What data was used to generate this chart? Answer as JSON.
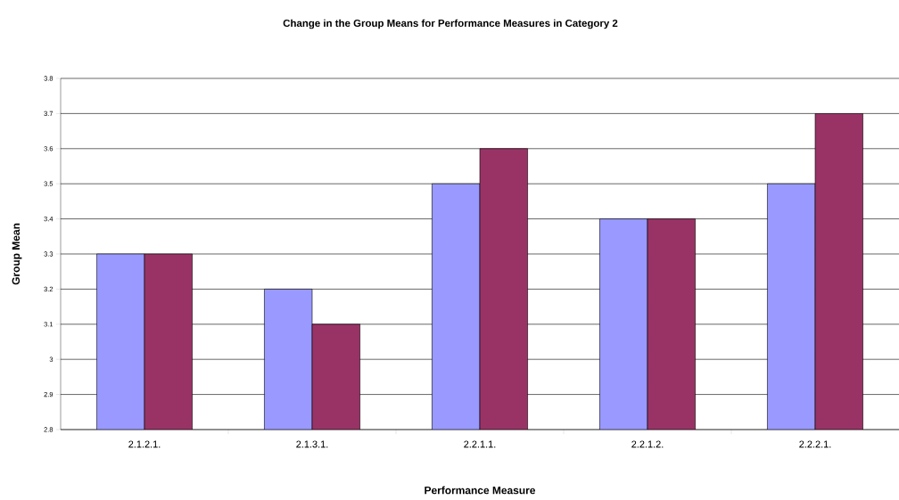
{
  "chart_data": {
    "type": "bar",
    "title": "Change in the Group Means for Performance Measures in Category 2",
    "xlabel": "Performance Measure",
    "ylabel": "Group Mean",
    "categories": [
      "2.1.2.1.",
      "2.1.3.1.",
      "2.2.1.1.",
      "2.2.1.2.",
      "2.2.2.1."
    ],
    "series": [
      {
        "color": "#9999ff",
        "values": [
          3.3,
          3.2,
          3.5,
          3.4,
          3.5
        ]
      },
      {
        "color": "#993366",
        "values": [
          3.3,
          3.1,
          3.6,
          3.4,
          3.7
        ]
      }
    ],
    "ylim": [
      2.8,
      3.8
    ],
    "yticks": [
      2.8,
      2.9,
      3,
      3.1,
      3.2,
      3.3,
      3.4,
      3.5,
      3.6,
      3.7,
      3.8
    ],
    "grid": "y"
  }
}
